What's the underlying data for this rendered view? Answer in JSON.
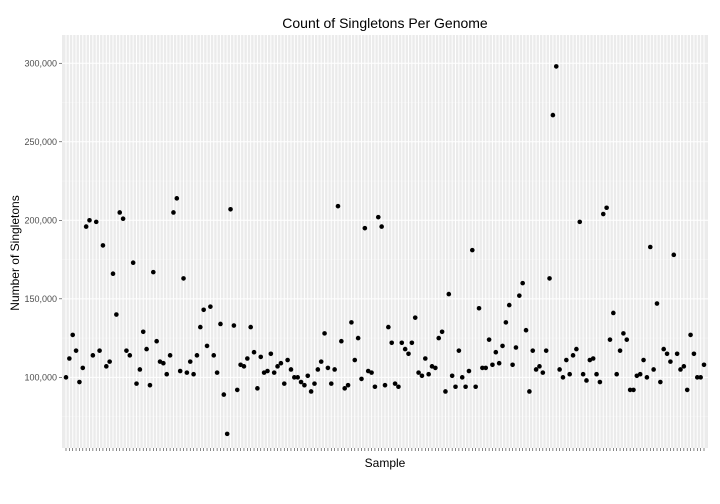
{
  "chart_data": {
    "type": "scatter",
    "title": "Count of Singletons Per Genome",
    "xlabel": "Sample",
    "ylabel": "Number of Singletons",
    "ylim": [
      55000,
      318000
    ],
    "yticks": [
      100000,
      150000,
      200000,
      250000,
      300000
    ],
    "ytick_labels": [
      "100,000",
      "150,000",
      "200,000",
      "250,000",
      "300,000"
    ],
    "x_tick_labels_visible": false,
    "grid": true,
    "legend": "none",
    "point_color": "#000000",
    "panel_color": "#ebebeb",
    "values": [
      100000,
      112000,
      127000,
      117000,
      97000,
      106000,
      196000,
      200000,
      114000,
      199000,
      117000,
      184000,
      107000,
      110000,
      166000,
      140000,
      205000,
      201000,
      117000,
      114000,
      173000,
      96000,
      105000,
      129000,
      118000,
      95000,
      167000,
      123000,
      110000,
      109000,
      102000,
      114000,
      205000,
      214000,
      104000,
      163000,
      103000,
      110000,
      102000,
      114000,
      132000,
      143000,
      120000,
      145000,
      114000,
      103000,
      134000,
      89000,
      64000,
      207000,
      133000,
      92000,
      108000,
      107000,
      112000,
      132000,
      116000,
      93000,
      113000,
      103000,
      104000,
      115000,
      103000,
      107000,
      109000,
      96000,
      111000,
      105000,
      100000,
      100000,
      97000,
      95000,
      101000,
      91000,
      96000,
      105000,
      110000,
      128000,
      106000,
      96000,
      105000,
      209000,
      123000,
      93000,
      95000,
      135000,
      111000,
      125000,
      99000,
      195000,
      104000,
      103000,
      94000,
      202000,
      196000,
      95000,
      132000,
      122000,
      96000,
      94000,
      122000,
      118000,
      115000,
      122000,
      138000,
      103000,
      101000,
      112000,
      102000,
      107000,
      106000,
      125000,
      129000,
      91000,
      153000,
      101000,
      94000,
      117000,
      100000,
      94000,
      104000,
      181000,
      94000,
      144000,
      106000,
      106000,
      124000,
      108000,
      116000,
      109000,
      120000,
      135000,
      146000,
      108000,
      119000,
      152000,
      160000,
      130000,
      91000,
      117000,
      105000,
      107000,
      103000,
      117000,
      163000,
      267000,
      298000,
      105000,
      100000,
      111000,
      102000,
      114000,
      118000,
      199000,
      102000,
      98000,
      111000,
      112000,
      102000,
      97000,
      204000,
      208000,
      124000,
      141000,
      102000,
      117000,
      128000,
      124000,
      92000,
      92000,
      101000,
      102000,
      111000,
      100000,
      183000,
      105000,
      147000,
      97000,
      118000,
      115000,
      110000,
      178000,
      115000,
      105000,
      107000,
      92000,
      127000,
      115000,
      100000,
      100000,
      108000
    ]
  }
}
